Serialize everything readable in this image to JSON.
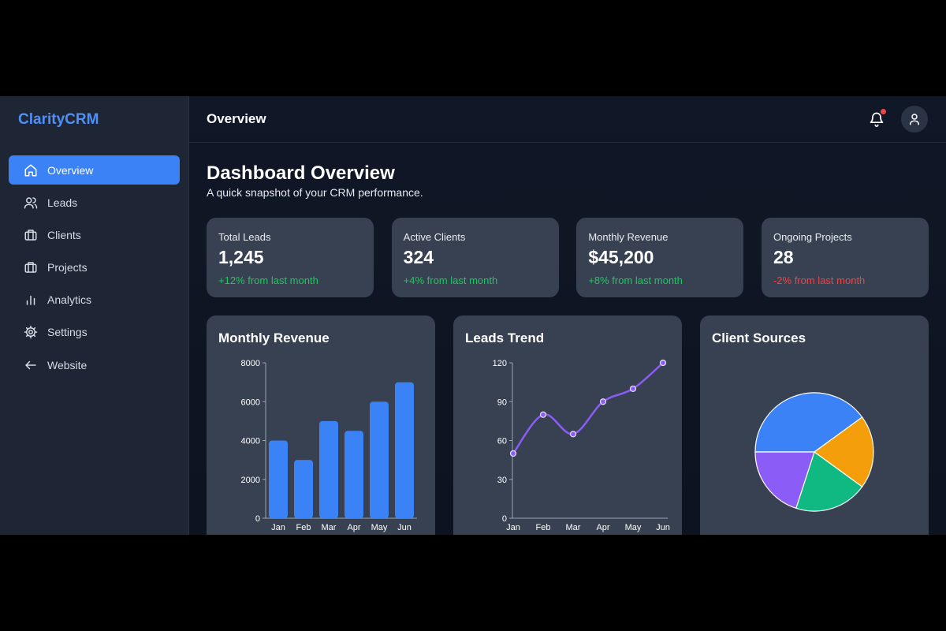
{
  "app": {
    "name": "ClarityCRM"
  },
  "sidebar": {
    "items": [
      {
        "label": "Overview",
        "icon": "home-icon",
        "active": true
      },
      {
        "label": "Leads",
        "icon": "users-icon"
      },
      {
        "label": "Clients",
        "icon": "briefcase-icon"
      },
      {
        "label": "Projects",
        "icon": "briefcase-icon"
      },
      {
        "label": "Analytics",
        "icon": "bar-chart-icon"
      },
      {
        "label": "Settings",
        "icon": "gear-icon"
      },
      {
        "label": "Website",
        "icon": "arrow-left-icon"
      }
    ]
  },
  "header": {
    "title": "Overview",
    "notification_icon": "bell-icon",
    "avatar_icon": "user-icon"
  },
  "page": {
    "title": "Dashboard Overview",
    "subtitle": "A quick snapshot of your CRM performance."
  },
  "stats": [
    {
      "label": "Total Leads",
      "value": "1,245",
      "change": "+12% from last month",
      "trend": "up"
    },
    {
      "label": "Active Clients",
      "value": "324",
      "change": "+4% from last month",
      "trend": "up"
    },
    {
      "label": "Monthly Revenue",
      "value": "$45,200",
      "change": "+8% from last month",
      "trend": "up"
    },
    {
      "label": "Ongoing Projects",
      "value": "28",
      "change": "-2% from last month",
      "trend": "down"
    }
  ],
  "colors": {
    "accent": "#3b82f6",
    "positive": "#22c55e",
    "negative": "#ef4444",
    "line": "#8b5cf6"
  },
  "chart_data": [
    {
      "type": "bar",
      "title": "Monthly Revenue",
      "categories": [
        "Jan",
        "Feb",
        "Mar",
        "Apr",
        "May",
        "Jun"
      ],
      "values": [
        4000,
        3000,
        5000,
        4500,
        6000,
        7000
      ],
      "ylim": [
        0,
        8000
      ],
      "yticks": [
        0,
        2000,
        4000,
        6000,
        8000
      ],
      "color": "#3b82f6"
    },
    {
      "type": "line",
      "title": "Leads Trend",
      "categories": [
        "Jan",
        "Feb",
        "Mar",
        "Apr",
        "May",
        "Jun"
      ],
      "values": [
        50,
        80,
        65,
        90,
        100,
        120
      ],
      "ylim": [
        0,
        120
      ],
      "yticks": [
        0,
        30,
        60,
        90,
        120
      ],
      "color": "#8b5cf6"
    },
    {
      "type": "pie",
      "title": "Client Sources",
      "values": [
        40,
        20,
        20,
        20
      ],
      "colors": [
        "#3b82f6",
        "#f59e0b",
        "#10b981",
        "#8b5cf6"
      ]
    }
  ]
}
